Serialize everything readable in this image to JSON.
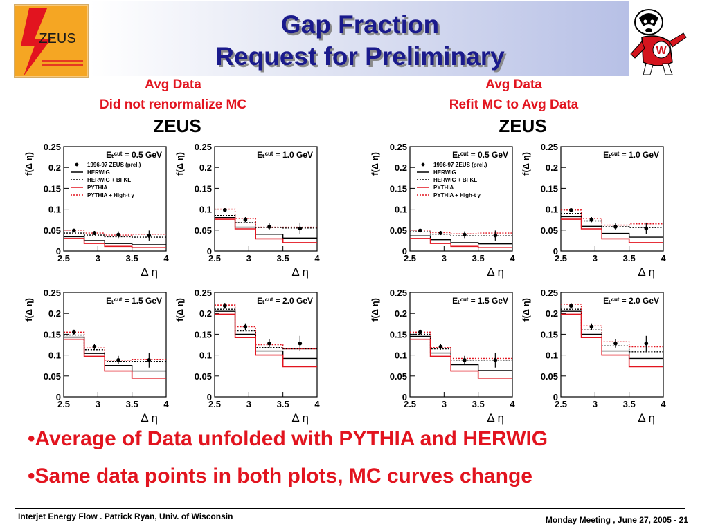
{
  "slide": {
    "title_line1": "Gap Fraction",
    "title_line2": "Request for Preliminary",
    "logo_text": "ZEUS",
    "left_label_line1": "Avg Data",
    "left_label_line2": "Did not renormalize MC",
    "right_label_line1": "Avg Data",
    "right_label_line2": "Refit MC to Avg Data",
    "zeus_heading": "ZEUS",
    "bullets": [
      "•Average of Data unfolded with PYTHIA and HERWIG",
      "•Same data points in both plots, MC curves change"
    ],
    "footer_left": "Interjet Energy Flow . Patrick Ryan, Univ. of Wisconsin",
    "footer_right": "Monday Meeting , June 27, 2005 - 21"
  },
  "colors": {
    "title": "#1a1a8c",
    "accent": "#e2141f",
    "pythia": "#e2141f",
    "herwig": "#000000"
  },
  "chart_data": [
    {
      "type": "line",
      "group": "left",
      "panel_label": "E_T^Cut = 0.5 GeV",
      "ylabel": "f(Δ η)",
      "xlabel": "Δ η",
      "xlim": [
        2.5,
        4.0
      ],
      "ylim": [
        0,
        0.25
      ],
      "xticks": [
        "2.5",
        "3",
        "3.5",
        "4"
      ],
      "yticks": [
        "0",
        "0.05",
        "0.1",
        "0.15",
        "0.2",
        "0.25"
      ],
      "bin_edges": [
        2.5,
        2.8,
        3.1,
        3.5,
        4.0
      ],
      "data_x": [
        2.65,
        2.95,
        3.3,
        3.75
      ],
      "data_y": [
        0.049,
        0.043,
        0.039,
        0.037
      ],
      "data_err": [
        0.004,
        0.005,
        0.008,
        0.012
      ],
      "series": [
        {
          "name": "HERWIG",
          "style": "solid-black",
          "values": [
            0.034,
            0.025,
            0.018,
            0.015
          ]
        },
        {
          "name": "HERWIG + BFKL",
          "style": "dotted-black",
          "values": [
            0.043,
            0.038,
            0.034,
            0.033
          ]
        },
        {
          "name": "PYTHIA",
          "style": "solid-red",
          "values": [
            0.03,
            0.018,
            0.011,
            0.008
          ]
        },
        {
          "name": "PYTHIA + High-t γ",
          "style": "dotted-red",
          "values": [
            0.05,
            0.043,
            0.038,
            0.04
          ]
        }
      ],
      "legend": {
        "data": "1996-97 ZEUS (prel.)",
        "entries": [
          "HERWIG",
          "HERWIG + BFKL",
          "PYTHIA",
          "PYTHIA + High-t γ"
        ]
      }
    },
    {
      "type": "line",
      "group": "left",
      "panel_label": "E_T^Cut = 1.0 GeV",
      "ylabel": "f(Δ η)",
      "xlabel": "Δ η",
      "xlim": [
        2.5,
        4.0
      ],
      "ylim": [
        0,
        0.25
      ],
      "xticks": [
        "2.5",
        "3",
        "3.5",
        "4"
      ],
      "yticks": [
        "0",
        "0.05",
        "0.1",
        "0.15",
        "0.2",
        "0.25"
      ],
      "bin_edges": [
        2.5,
        2.8,
        3.1,
        3.5,
        4.0
      ],
      "data_x": [
        2.65,
        2.95,
        3.3,
        3.75
      ],
      "data_y": [
        0.098,
        0.075,
        0.058,
        0.054
      ],
      "data_err": [
        0.004,
        0.006,
        0.008,
        0.014
      ],
      "series": [
        {
          "name": "HERWIG",
          "style": "solid-black",
          "values": [
            0.08,
            0.057,
            0.04,
            0.031
          ]
        },
        {
          "name": "HERWIG + BFKL",
          "style": "dotted-black",
          "values": [
            0.085,
            0.068,
            0.056,
            0.055
          ]
        },
        {
          "name": "PYTHIA",
          "style": "solid-red",
          "values": [
            0.076,
            0.053,
            0.029,
            0.02
          ]
        },
        {
          "name": "PYTHIA + High-t γ",
          "style": "dotted-red",
          "values": [
            0.1,
            0.078,
            0.057,
            0.057
          ]
        }
      ]
    },
    {
      "type": "line",
      "group": "left",
      "panel_label": "E_T^Cut = 1.5 GeV",
      "ylabel": "f(Δ η)",
      "xlabel": "Δ η",
      "xlim": [
        2.5,
        4.0
      ],
      "ylim": [
        0,
        0.25
      ],
      "xticks": [
        "2.5",
        "3",
        "3.5",
        "4"
      ],
      "yticks": [
        "0",
        "0.05",
        "0.1",
        "0.15",
        "0.2",
        "0.25"
      ],
      "bin_edges": [
        2.5,
        2.8,
        3.1,
        3.5,
        4.0
      ],
      "data_x": [
        2.65,
        2.95,
        3.3,
        3.75
      ],
      "data_y": [
        0.155,
        0.12,
        0.088,
        0.088
      ],
      "data_err": [
        0.006,
        0.007,
        0.01,
        0.018
      ],
      "series": [
        {
          "name": "HERWIG",
          "style": "solid-black",
          "values": [
            0.143,
            0.104,
            0.075,
            0.062
          ]
        },
        {
          "name": "HERWIG + BFKL",
          "style": "dotted-black",
          "values": [
            0.148,
            0.113,
            0.085,
            0.085
          ]
        },
        {
          "name": "PYTHIA",
          "style": "solid-red",
          "values": [
            0.138,
            0.097,
            0.062,
            0.045
          ]
        },
        {
          "name": "PYTHIA + High-t γ",
          "style": "dotted-red",
          "values": [
            0.155,
            0.117,
            0.088,
            0.09
          ]
        }
      ]
    },
    {
      "type": "line",
      "group": "left",
      "panel_label": "E_T^Cut = 2.0 GeV",
      "ylabel": "f(Δ η)",
      "xlabel": "Δ η",
      "xlim": [
        2.5,
        4.0
      ],
      "ylim": [
        0,
        0.25
      ],
      "xticks": [
        "2.5",
        "3",
        "3.5",
        "4"
      ],
      "yticks": [
        "0",
        "0.05",
        "0.1",
        "0.15",
        "0.2",
        "0.25"
      ],
      "bin_edges": [
        2.5,
        2.8,
        3.1,
        3.5,
        4.0
      ],
      "data_x": [
        2.65,
        2.95,
        3.3,
        3.75
      ],
      "data_y": [
        0.218,
        0.168,
        0.128,
        0.128
      ],
      "data_err": [
        0.007,
        0.008,
        0.01,
        0.018
      ],
      "series": [
        {
          "name": "HERWIG",
          "style": "solid-black",
          "values": [
            0.205,
            0.15,
            0.11,
            0.092
          ]
        },
        {
          "name": "HERWIG + BFKL",
          "style": "dotted-black",
          "values": [
            0.21,
            0.158,
            0.118,
            0.115
          ]
        },
        {
          "name": "PYTHIA",
          "style": "solid-red",
          "values": [
            0.198,
            0.142,
            0.1,
            0.072
          ]
        },
        {
          "name": "PYTHIA + High-t γ",
          "style": "dotted-red",
          "values": [
            0.22,
            0.168,
            0.125,
            0.115
          ]
        }
      ]
    },
    {
      "type": "line",
      "group": "right",
      "panel_label": "E_T^Cut = 0.5 GeV",
      "ylabel": "f(Δ η)",
      "xlabel": "Δ η",
      "xlim": [
        2.5,
        4.0
      ],
      "ylim": [
        0,
        0.25
      ],
      "xticks": [
        "2.5",
        "3",
        "3.5",
        "4"
      ],
      "yticks": [
        "0",
        "0.05",
        "0.1",
        "0.15",
        "0.2",
        "0.25"
      ],
      "bin_edges": [
        2.5,
        2.8,
        3.1,
        3.5,
        4.0
      ],
      "data_x": [
        2.65,
        2.95,
        3.3,
        3.75
      ],
      "data_y": [
        0.049,
        0.043,
        0.039,
        0.037
      ],
      "data_err": [
        0.004,
        0.005,
        0.008,
        0.012
      ],
      "series": [
        {
          "name": "HERWIG",
          "style": "solid-black",
          "values": [
            0.036,
            0.027,
            0.02,
            0.017
          ]
        },
        {
          "name": "HERWIG + BFKL",
          "style": "dotted-black",
          "values": [
            0.046,
            0.04,
            0.036,
            0.036
          ]
        },
        {
          "name": "PYTHIA",
          "style": "solid-red",
          "values": [
            0.03,
            0.018,
            0.011,
            0.008
          ]
        },
        {
          "name": "PYTHIA + High-t γ",
          "style": "dotted-red",
          "values": [
            0.05,
            0.044,
            0.041,
            0.043
          ]
        }
      ],
      "legend": {
        "data": "1996-97 ZEUS (prel.)",
        "entries": [
          "HERWIG",
          "HERWIG + BFKL",
          "PYTHIA",
          "PYTHIA + High-t γ"
        ]
      }
    },
    {
      "type": "line",
      "group": "right",
      "panel_label": "E_T^Cut = 1.0 GeV",
      "ylabel": "f(Δ η)",
      "xlabel": "Δ η",
      "xlim": [
        2.5,
        4.0
      ],
      "ylim": [
        0,
        0.25
      ],
      "xticks": [
        "2.5",
        "3",
        "3.5",
        "4"
      ],
      "yticks": [
        "0",
        "0.05",
        "0.1",
        "0.15",
        "0.2",
        "0.25"
      ],
      "bin_edges": [
        2.5,
        2.8,
        3.1,
        3.5,
        4.0
      ],
      "data_x": [
        2.65,
        2.95,
        3.3,
        3.75
      ],
      "data_y": [
        0.098,
        0.075,
        0.058,
        0.054
      ],
      "data_err": [
        0.004,
        0.006,
        0.008,
        0.014
      ],
      "series": [
        {
          "name": "HERWIG",
          "style": "solid-black",
          "values": [
            0.082,
            0.059,
            0.042,
            0.033
          ]
        },
        {
          "name": "HERWIG + BFKL",
          "style": "dotted-black",
          "values": [
            0.09,
            0.072,
            0.058,
            0.056
          ]
        },
        {
          "name": "PYTHIA",
          "style": "solid-red",
          "values": [
            0.076,
            0.053,
            0.029,
            0.02
          ]
        },
        {
          "name": "PYTHIA + High-t γ",
          "style": "dotted-red",
          "values": [
            0.098,
            0.078,
            0.062,
            0.065
          ]
        }
      ]
    },
    {
      "type": "line",
      "group": "right",
      "panel_label": "E_T^Cut = 1.5 GeV",
      "ylabel": "f(Δ η)",
      "xlabel": "Δ η",
      "xlim": [
        2.5,
        4.0
      ],
      "ylim": [
        0,
        0.25
      ],
      "xticks": [
        "2.5",
        "3",
        "3.5",
        "4"
      ],
      "yticks": [
        "0",
        "0.05",
        "0.1",
        "0.15",
        "0.2",
        "0.25"
      ],
      "bin_edges": [
        2.5,
        2.8,
        3.1,
        3.5,
        4.0
      ],
      "data_x": [
        2.65,
        2.95,
        3.3,
        3.75
      ],
      "data_y": [
        0.155,
        0.12,
        0.088,
        0.088
      ],
      "data_err": [
        0.006,
        0.007,
        0.01,
        0.018
      ],
      "series": [
        {
          "name": "HERWIG",
          "style": "solid-black",
          "values": [
            0.145,
            0.105,
            0.077,
            0.063
          ]
        },
        {
          "name": "HERWIG + BFKL",
          "style": "dotted-black",
          "values": [
            0.15,
            0.115,
            0.088,
            0.088
          ]
        },
        {
          "name": "PYTHIA",
          "style": "solid-red",
          "values": [
            0.138,
            0.097,
            0.062,
            0.045
          ]
        },
        {
          "name": "PYTHIA + High-t γ",
          "style": "dotted-red",
          "values": [
            0.155,
            0.118,
            0.092,
            0.092
          ]
        }
      ]
    },
    {
      "type": "line",
      "group": "right",
      "panel_label": "E_T^Cut = 2.0 GeV",
      "ylabel": "f(Δ η)",
      "xlabel": "Δ η",
      "xlim": [
        2.5,
        4.0
      ],
      "ylim": [
        0,
        0.25
      ],
      "xticks": [
        "2.5",
        "3",
        "3.5",
        "4"
      ],
      "yticks": [
        "0",
        "0.05",
        "0.1",
        "0.15",
        "0.2",
        "0.25"
      ],
      "bin_edges": [
        2.5,
        2.8,
        3.1,
        3.5,
        4.0
      ],
      "data_x": [
        2.65,
        2.95,
        3.3,
        3.75
      ],
      "data_y": [
        0.218,
        0.168,
        0.128,
        0.128
      ],
      "data_err": [
        0.007,
        0.008,
        0.01,
        0.018
      ],
      "series": [
        {
          "name": "HERWIG",
          "style": "solid-black",
          "values": [
            0.205,
            0.15,
            0.11,
            0.092
          ]
        },
        {
          "name": "HERWIG + BFKL",
          "style": "dotted-black",
          "values": [
            0.21,
            0.16,
            0.122,
            0.108
          ]
        },
        {
          "name": "PYTHIA",
          "style": "solid-red",
          "values": [
            0.198,
            0.142,
            0.1,
            0.072
          ]
        },
        {
          "name": "PYTHIA + High-t γ",
          "style": "dotted-red",
          "values": [
            0.222,
            0.17,
            0.132,
            0.12
          ]
        }
      ]
    }
  ]
}
